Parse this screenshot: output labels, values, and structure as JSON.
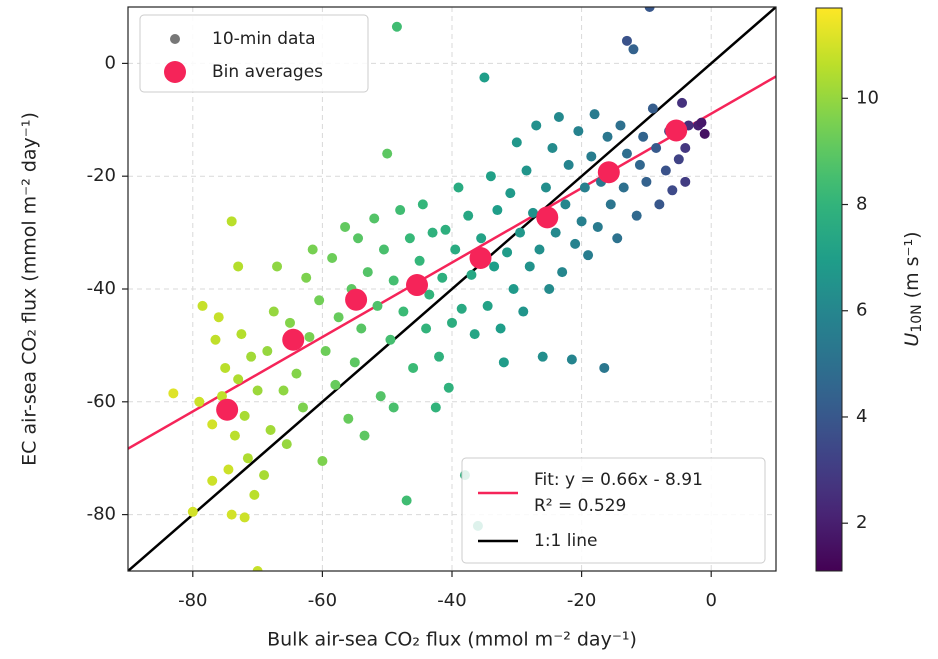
{
  "chart_data": {
    "type": "scatter",
    "xlabel": "Bulk air-sea CO₂ flux (mmol m⁻² day⁻¹)",
    "ylabel": "EC air-sea CO₂ flux (mmol m⁻² day⁻¹)",
    "xlim": [
      -90,
      10
    ],
    "ylim": [
      -90,
      10
    ],
    "xticks": [
      -80,
      -60,
      -40,
      -20,
      0
    ],
    "yticks": [
      -80,
      -60,
      -40,
      -20,
      0
    ],
    "grid": true,
    "colormap": "viridis",
    "clim": [
      1.1,
      11.7
    ],
    "cticks": [
      2,
      4,
      6,
      8,
      10
    ],
    "colorbar_label": [
      "U",
      "10N",
      " (m s⁻¹)"
    ],
    "series": [
      {
        "name": "10-min data",
        "color": "#777777",
        "x": [
          -83,
          -80,
          -79,
          -78.5,
          -77,
          -77,
          -76.5,
          -76,
          -75.5,
          -75,
          -74.5,
          -74,
          -74,
          -73.5,
          -73,
          -73,
          -72.5,
          -72,
          -72,
          -71.5,
          -71,
          -70.5,
          -70,
          -70,
          -69,
          -68.5,
          -68,
          -67.5,
          -67,
          -66,
          -65.5,
          -65,
          -64,
          -63,
          -62.5,
          -62,
          -61.5,
          -60.5,
          -60,
          -59.5,
          -58.5,
          -58,
          -57.5,
          -56.5,
          -56,
          -55.5,
          -55,
          -54.5,
          -54,
          -53.5,
          -53,
          -52,
          -51.5,
          -51,
          -50.5,
          -50,
          -49.5,
          -49,
          -49,
          -48.5,
          -48,
          -47.5,
          -47,
          -46.5,
          -46,
          -45,
          -44.5,
          -44,
          -43.5,
          -43,
          -42.5,
          -42,
          -41.5,
          -41,
          -40.5,
          -40,
          -39.5,
          -39,
          -38.5,
          -38,
          -37.5,
          -37,
          -36.5,
          -36,
          -35.5,
          -35,
          -34.5,
          -34,
          -33.5,
          -33,
          -32.5,
          -32,
          -31.5,
          -31,
          -30.5,
          -30,
          -29.5,
          -29,
          -28.5,
          -28,
          -27.5,
          -27,
          -26.5,
          -26,
          -25.5,
          -25,
          -24.5,
          -24,
          -23.5,
          -23,
          -22.5,
          -22,
          -21.5,
          -21,
          -20.5,
          -20,
          -19.5,
          -19,
          -18.5,
          -18,
          -17.5,
          -17,
          -16.5,
          -16,
          -15.5,
          -15,
          -14.5,
          -14,
          -13.5,
          -13,
          -12,
          -11.5,
          -11,
          -10.5,
          -10,
          -9.5,
          -9,
          -8.5,
          -8,
          -7,
          -6.5,
          -6,
          -5,
          -4.5,
          -4,
          -4,
          -3.5,
          -2,
          -1.5,
          -1,
          -13
        ],
        "values": [
          -58.5,
          -79.5,
          -60,
          -43,
          -64,
          -74,
          -49,
          -45,
          -59,
          -54,
          -72,
          -28,
          -80,
          -66,
          -36,
          -56,
          -48,
          -62.5,
          -80.5,
          -70,
          -52,
          -76.5,
          -90,
          -58,
          -73,
          -51,
          -65,
          -44,
          -36,
          -58,
          -67.5,
          -46,
          -55,
          -61,
          -38,
          -48.5,
          -33,
          -42,
          -70.5,
          -51,
          -34.5,
          -57,
          -45,
          -29,
          -63,
          -40,
          -53,
          -31,
          -47,
          -66,
          -37,
          -27.5,
          -43,
          -59,
          -33,
          -16,
          -49,
          -61,
          -38.5,
          6.5,
          -26,
          -44,
          -77.5,
          -31,
          -54,
          -35,
          -25,
          -47,
          -41,
          -30,
          -61,
          -52,
          -38,
          -29.5,
          -57.5,
          -46,
          -33,
          -22,
          -43.5,
          -73,
          -27,
          -37.5,
          -48,
          -82,
          -31,
          -2.5,
          -43,
          -20,
          -36,
          -26,
          -47,
          -53,
          -33.5,
          -23,
          -40,
          -14,
          -30,
          -44,
          -19,
          -36,
          -26.5,
          -11,
          -33,
          -52,
          -22,
          -40,
          -15,
          -30,
          -9.5,
          -37,
          -25,
          -18,
          -52.5,
          -32,
          -12,
          -28,
          -22,
          -34,
          -16.5,
          -9,
          -29,
          -21,
          -54,
          -13,
          -25,
          -19,
          -31,
          -11,
          -22,
          -16,
          2.5,
          -27,
          -18,
          -13,
          -21,
          10,
          -8,
          -15,
          -25,
          -19,
          -12,
          -22.5,
          -17,
          -7,
          -15,
          -21,
          -11,
          -11,
          -10.5,
          -12.5,
          4
        ],
        "c": [
          11.2,
          11.0,
          10.9,
          10.8,
          11.0,
          10.9,
          10.7,
          10.8,
          10.7,
          10.6,
          10.9,
          10.6,
          11.0,
          10.6,
          10.5,
          10.4,
          10.5,
          10.3,
          10.9,
          10.4,
          10.2,
          10.6,
          10.8,
          10.1,
          10.3,
          10.0,
          10.2,
          10.0,
          9.9,
          9.9,
          10.0,
          9.7,
          9.7,
          9.6,
          9.6,
          9.5,
          9.5,
          9.4,
          9.6,
          9.3,
          9.3,
          9.2,
          9.2,
          9.1,
          9.2,
          9.0,
          9.0,
          8.9,
          8.9,
          9.0,
          8.8,
          8.8,
          8.7,
          8.8,
          8.6,
          9.0,
          8.5,
          8.6,
          8.5,
          8.4,
          8.4,
          8.3,
          8.4,
          8.2,
          8.3,
          8.1,
          8.1,
          8.0,
          8.0,
          7.9,
          8.0,
          7.9,
          7.8,
          7.8,
          7.9,
          7.7,
          7.6,
          7.6,
          7.5,
          7.8,
          7.4,
          7.4,
          7.3,
          7.4,
          7.2,
          7.0,
          7.2,
          7.1,
          7.0,
          7.0,
          7.0,
          6.9,
          6.9,
          6.8,
          6.8,
          6.7,
          6.7,
          6.6,
          6.6,
          6.5,
          6.5,
          6.4,
          6.4,
          6.3,
          6.3,
          6.2,
          6.2,
          6.1,
          6.1,
          6.0,
          6.0,
          5.9,
          5.9,
          5.8,
          5.8,
          5.7,
          5.7,
          5.6,
          5.6,
          5.5,
          5.5,
          5.4,
          5.3,
          5.3,
          5.2,
          5.2,
          5.1,
          5.0,
          5.0,
          4.9,
          4.4,
          4.7,
          4.6,
          4.5,
          4.4,
          4.0,
          4.2,
          4.1,
          4.0,
          3.8,
          3.6,
          3.5,
          3.2,
          2.6,
          2.8,
          3.0,
          2.5,
          2.0,
          1.8,
          1.6,
          3.8
        ]
      },
      {
        "name": "Bin averages",
        "color": "#f52459",
        "x": [
          -74.7,
          -64.5,
          -54.8,
          -45.4,
          -35.6,
          -25.3,
          -15.8,
          -5.4
        ],
        "values": [
          -61.4,
          -49.0,
          -41.9,
          -39.3,
          -34.5,
          -27.3,
          -19.3,
          -11.9
        ]
      }
    ],
    "fit": {
      "name": "Fit: y = 0.66x - 8.91",
      "r2": "R² = 0.529",
      "slope": 0.66,
      "intercept": -8.91,
      "color": "#f52459"
    },
    "identity": {
      "name": "1:1 line",
      "color": "#000000"
    }
  }
}
